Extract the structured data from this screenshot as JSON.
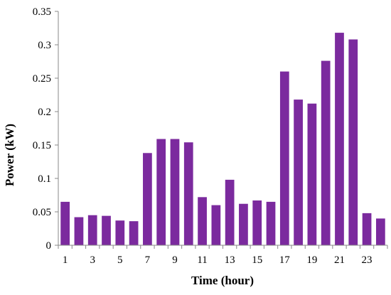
{
  "chart_data": {
    "type": "bar",
    "title": "",
    "xlabel": "Time (hour)",
    "ylabel": "Power (kW)",
    "categories": [
      "1",
      "2",
      "3",
      "4",
      "5",
      "6",
      "7",
      "8",
      "9",
      "10",
      "11",
      "12",
      "13",
      "14",
      "15",
      "16",
      "17",
      "18",
      "19",
      "20",
      "21",
      "22",
      "23",
      "24"
    ],
    "x_tick_labels_shown": [
      "1",
      "3",
      "5",
      "7",
      "9",
      "11",
      "13",
      "15",
      "17",
      "19",
      "21",
      "23"
    ],
    "values": [
      0.065,
      0.042,
      0.045,
      0.044,
      0.037,
      0.036,
      0.138,
      0.159,
      0.159,
      0.154,
      0.072,
      0.06,
      0.098,
      0.062,
      0.067,
      0.065,
      0.26,
      0.218,
      0.212,
      0.276,
      0.318,
      0.308,
      0.048,
      0.04
    ],
    "ylim": [
      0,
      0.35
    ],
    "y_ticks": [
      "0",
      "0.05",
      "0.1",
      "0.15",
      "0.2",
      "0.25",
      "0.3",
      "0.35"
    ],
    "grid": false,
    "legend": "none",
    "bar_color": "#7B2A9E",
    "axis_color": "#888888"
  }
}
